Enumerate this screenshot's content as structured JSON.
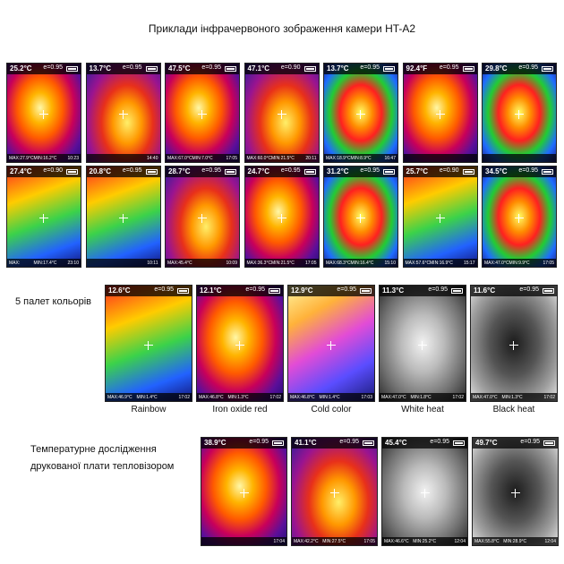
{
  "title": "Приклади інфрачервоного зображення камери HT-A2",
  "gallery_row1": [
    {
      "temp": "25.2°C",
      "emissivity": "e=0.95",
      "max": "MAX:27.9°C",
      "min": "MIN:16.2°C",
      "time": "10:23",
      "palette": "iron"
    },
    {
      "temp": "13.7°C",
      "emissivity": "e=0.95",
      "max": "",
      "min": "",
      "time": "14:40",
      "palette": "iron2"
    },
    {
      "temp": "47.5°C",
      "emissivity": "e=0.95",
      "max": "MAX:67.0°C",
      "min": "MIN:7.0°C",
      "time": "17:05",
      "palette": "iron"
    },
    {
      "temp": "47.1°C",
      "emissivity": "e=0.90",
      "max": "MAX:60.0°C",
      "min": "MIN:21.5°C",
      "time": "20:11",
      "palette": "iron2"
    },
    {
      "temp": "13.7°C",
      "emissivity": "e=0.95",
      "max": "MAX:18.9°C",
      "min": "MIN:8.9°C",
      "time": "16:47",
      "palette": "rainbow"
    },
    {
      "temp": "92.4°F",
      "emissivity": "e=0.95",
      "max": "",
      "min": "",
      "time": "",
      "palette": "iron"
    },
    {
      "temp": "29.8°C",
      "emissivity": "e=0.95",
      "max": "",
      "min": "",
      "time": "",
      "palette": "rainbow"
    }
  ],
  "gallery_row2": [
    {
      "temp": "27.4°C",
      "emissivity": "e=0.90",
      "max": "MAX:",
      "min": "MIN:17.4°C",
      "time": "23:10",
      "palette": "rainbow2"
    },
    {
      "temp": "20.8°C",
      "emissivity": "e=0.95",
      "max": "",
      "min": "",
      "time": "10:11",
      "palette": "rainbow2"
    },
    {
      "temp": "28.7°C",
      "emissivity": "e=0.95",
      "max": "MAX:45.4°C",
      "min": "",
      "time": "10:09",
      "palette": "iron2"
    },
    {
      "temp": "24.7°C",
      "emissivity": "e=0.95",
      "max": "MAX:36.3°C",
      "min": "MIN:21.5°C",
      "time": "17:05",
      "palette": "iron"
    },
    {
      "temp": "31.2°C",
      "emissivity": "e=0.95",
      "max": "MAX:68.3°C",
      "min": "MIN:16.4°C",
      "time": "15:10",
      "palette": "rainbow"
    },
    {
      "temp": "25.7°C",
      "emissivity": "e=0.90",
      "max": "MAX:57.6°C",
      "min": "MIN:16.9°C",
      "time": "15:17",
      "palette": "rainbow2"
    },
    {
      "temp": "34.5°C",
      "emissivity": "e=0.95",
      "max": "MAX:47.0°C",
      "min": "MIN:9.9°C",
      "time": "17:05",
      "palette": "rainbow"
    }
  ],
  "palettes_section_label": "5 палет кольорів",
  "palettes": [
    {
      "temp": "12.6°C",
      "emissivity": "e=0.95",
      "max": "MAX:46.9°C",
      "min": "MIN:1.4°C",
      "time": "17:02",
      "name": "Rainbow",
      "palette": "rainbow2"
    },
    {
      "temp": "12.1°C",
      "emissivity": "e=0.95",
      "max": "MAX:46.8°C",
      "min": "MIN:1.3°C",
      "time": "17:02",
      "name": "Iron oxide red",
      "palette": "iron"
    },
    {
      "temp": "12.9°C",
      "emissivity": "e=0.95",
      "max": "MAX:46.8°C",
      "min": "MIN:1.4°C",
      "time": "17:03",
      "name": "Cold color",
      "palette": "cold"
    },
    {
      "temp": "11.3°C",
      "emissivity": "e=0.95",
      "max": "MAX:47.0°C",
      "min": "MIN:1.8°C",
      "time": "17:02",
      "name": "White heat",
      "palette": "white"
    },
    {
      "temp": "11.6°C",
      "emissivity": "e=0.95",
      "max": "MAX:47.0°C",
      "min": "MIN:1.3°C",
      "time": "17:02",
      "name": "Black heat",
      "palette": "black"
    }
  ],
  "pcb_section_label": "Температурне дослідження друкованої плати тепловізором",
  "pcb_images": [
    {
      "temp": "38.9°C",
      "emissivity": "e=0.95",
      "max": "",
      "min": "",
      "time": "17:04",
      "palette": "iron"
    },
    {
      "temp": "41.1°C",
      "emissivity": "e=0.95",
      "max": "MAX:42.2°C",
      "min": "MIN:27.5°C",
      "time": "17:05",
      "palette": "iron2"
    },
    {
      "temp": "45.4°C",
      "emissivity": "e=0.95",
      "max": "MAX:46.6°C",
      "min": "MIN:25.2°C",
      "time": "12:04",
      "palette": "white"
    },
    {
      "temp": "49.7°C",
      "emissivity": "e=0.95",
      "max": "MAX:55.8°C",
      "min": "MIN:28.9°C",
      "time": "12:04",
      "palette": "black"
    }
  ]
}
